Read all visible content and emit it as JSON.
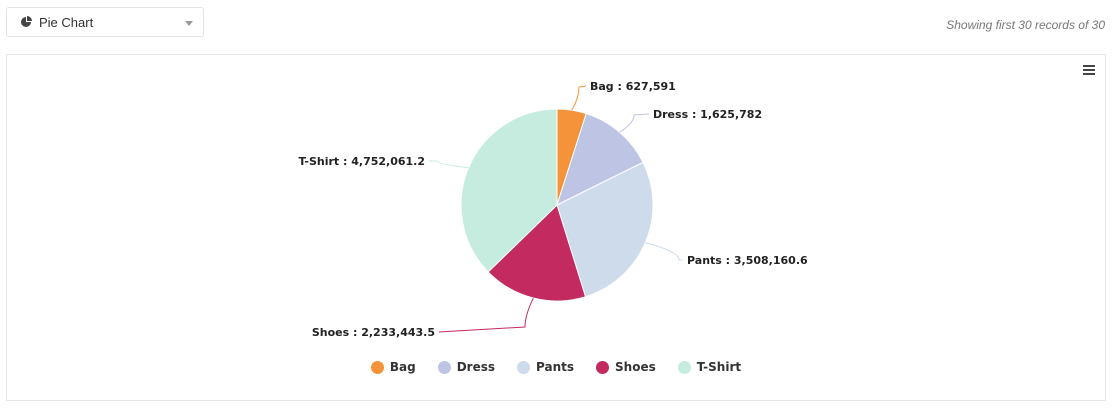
{
  "toolbar": {
    "chart_type_label": "Pie Chart",
    "records_text": "Showing first 30 records of 30"
  },
  "chart_data": {
    "type": "pie",
    "categories": [
      "Bag",
      "Dress",
      "Pants",
      "Shoes",
      "T-Shirt"
    ],
    "values": [
      627591,
      1625782,
      3508160.6,
      2233443.5,
      4752061.2
    ],
    "value_labels": [
      "627,591",
      "1,625,782",
      "3,508,160.6",
      "2,233,443.5",
      "4,752,061.2"
    ],
    "colors": [
      "#f5933a",
      "#bec4e3",
      "#cddbea",
      "#c32a5f",
      "#c6ece0"
    ],
    "legend_position": "bottom"
  }
}
